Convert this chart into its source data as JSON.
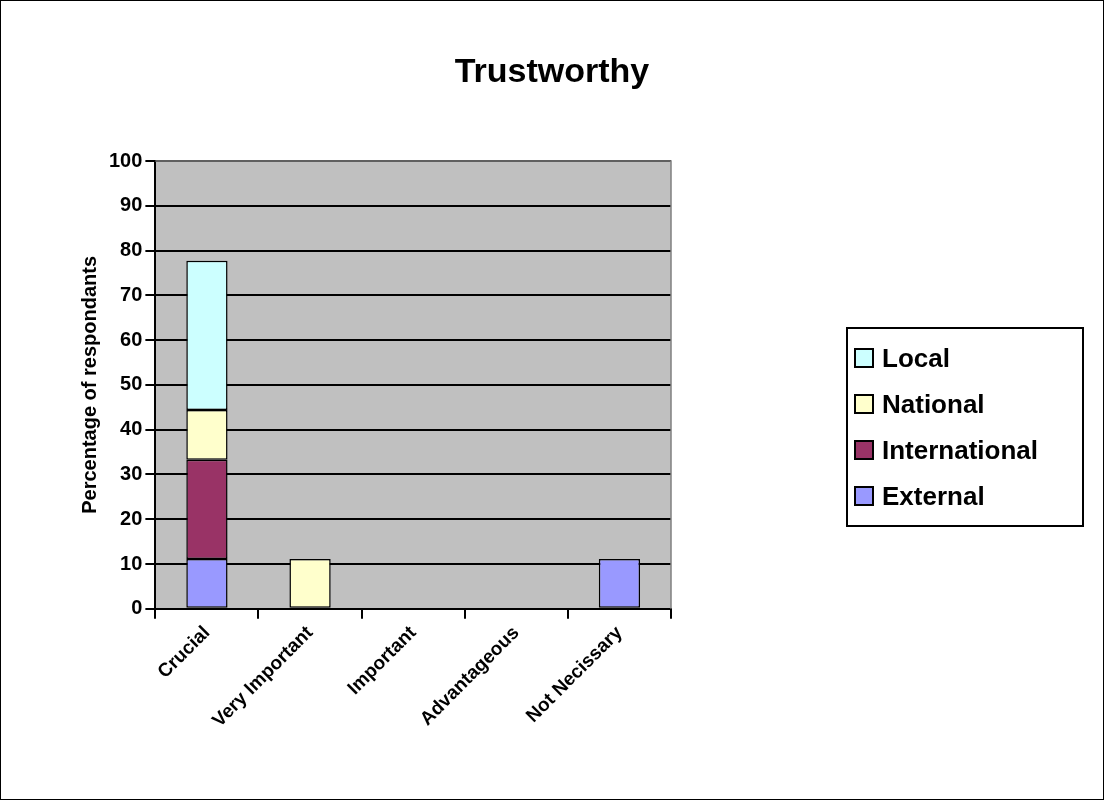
{
  "chart_data": {
    "type": "bar",
    "title": "Trustworthy",
    "ylabel": "Percentage of respondants",
    "categories": [
      "Crucial",
      "Very Important",
      "Important",
      "Advantageous",
      "Not Necissary"
    ],
    "series": [
      {
        "name": "External",
        "color": "#9999ff",
        "values": [
          11.1,
          null,
          null,
          null,
          11.1
        ]
      },
      {
        "name": "International",
        "color": "#993366",
        "values": [
          22.2,
          null,
          null,
          null,
          null
        ]
      },
      {
        "name": "National",
        "color": "#ffffcc",
        "values": [
          11.1,
          11.1,
          null,
          null,
          null
        ]
      },
      {
        "name": "Local",
        "color": "#ccffff",
        "values": [
          33.3,
          null,
          null,
          null,
          null
        ]
      }
    ],
    "stacked": true,
    "ylim": [
      0,
      100
    ],
    "yticks": [
      0,
      10,
      20,
      30,
      40,
      50,
      60,
      70,
      80,
      90,
      100
    ],
    "grid": "y",
    "legend": "right"
  }
}
